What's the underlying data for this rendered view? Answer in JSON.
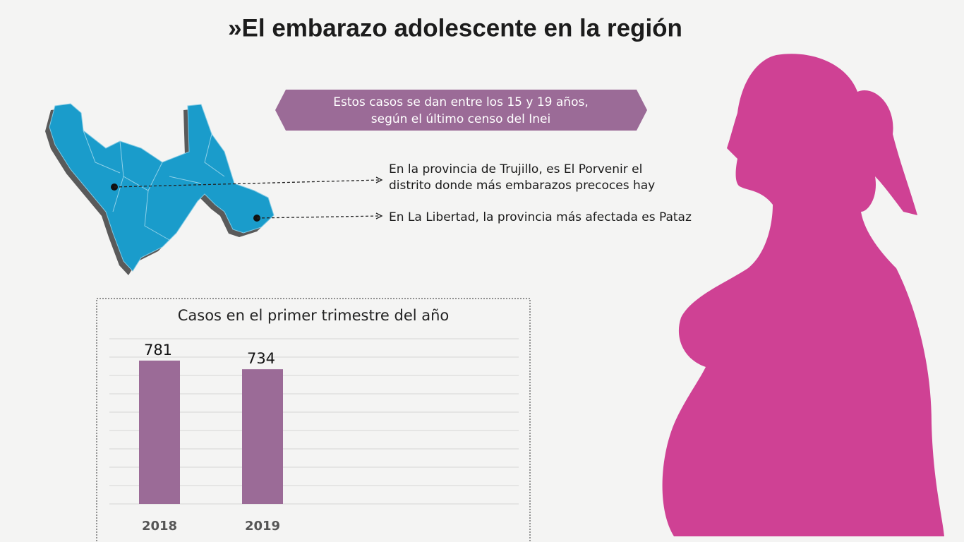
{
  "title": "»El embarazo adolescente en la región",
  "banner": [
    "Estos casos se dan entre los 15 y 19 años,",
    "según el último censo del Inei"
  ],
  "annotations": [
    [
      "En la provincia de Trujillo, es El Porvenir el",
      "distrito donde más embarazos precoces hay"
    ],
    [
      "En La Libertad, la provincia más afectada es Pataz"
    ]
  ],
  "chart_data": {
    "type": "bar",
    "title": "Casos en el primer trimestre del año",
    "categories": [
      "2018",
      "2019"
    ],
    "values": [
      781,
      734
    ],
    "color": "#9b6b97",
    "ylim": [
      0,
      900
    ],
    "yticks": [
      0,
      100,
      200,
      300,
      400,
      500,
      600,
      700,
      800,
      900
    ],
    "grid": true
  }
}
